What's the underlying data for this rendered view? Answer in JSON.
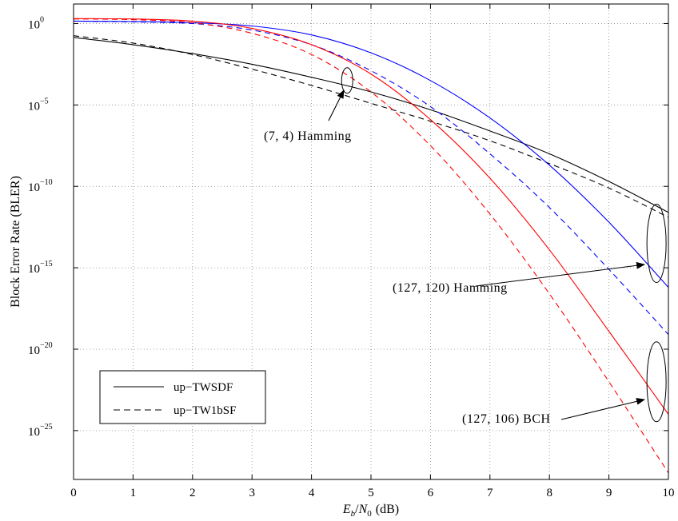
{
  "chart_data": {
    "type": "line",
    "xlabel": "E_b/N_0 (dB)",
    "xlabel_parts": {
      "e": "E",
      "b": "b",
      "slash": "/",
      "n": "N",
      "zero": "0",
      "unit": "(dB)"
    },
    "ylabel": "Block Error Rate (BLER)",
    "x_scale": "linear",
    "y_scale": "log",
    "xlim": [
      0,
      10
    ],
    "ylim_exponent": [
      -28,
      1.2
    ],
    "grid": true,
    "x_ticks": [
      "0",
      "1",
      "2",
      "3",
      "4",
      "5",
      "6",
      "7",
      "8",
      "9",
      "10"
    ],
    "y_ticks": [
      {
        "base": "10",
        "exp": "0",
        "value_exponent": 0
      },
      {
        "base": "10",
        "exp": "−5",
        "value_exponent": -5
      },
      {
        "base": "10",
        "exp": "−10",
        "value_exponent": -10
      },
      {
        "base": "10",
        "exp": "−15",
        "value_exponent": -15
      },
      {
        "base": "10",
        "exp": "−20",
        "value_exponent": -20
      },
      {
        "base": "10",
        "exp": "−25",
        "value_exponent": -25
      }
    ],
    "legend": {
      "position": "bottom-left",
      "entries": [
        {
          "label": "up−TWSDF",
          "style": "solid"
        },
        {
          "label": "up−TW1bSF",
          "style": "dashed"
        }
      ]
    },
    "y_value_note": "y values are base-10 exponents of BLER",
    "series": [
      {
        "group": "(7, 4) Hamming",
        "style": "solid",
        "color": "#000000",
        "x": [
          0,
          1,
          2,
          3,
          4,
          5,
          6,
          7,
          8,
          9,
          10
        ],
        "y": [
          -0.85,
          -1.3,
          -1.85,
          -2.5,
          -3.3,
          -4.2,
          -5.3,
          -6.6,
          -8.0,
          -9.7,
          -11.6
        ]
      },
      {
        "group": "(7, 4) Hamming",
        "style": "dashed",
        "color": "#000000",
        "x": [
          0,
          1,
          2,
          3,
          4,
          5,
          6,
          7,
          8,
          9,
          10
        ],
        "y": [
          -0.75,
          -1.2,
          -1.9,
          -2.8,
          -3.8,
          -4.9,
          -6.0,
          -7.2,
          -8.6,
          -10.1,
          -11.9
        ]
      },
      {
        "group": "(127, 120) Hamming",
        "style": "solid",
        "color": "#0000ff",
        "x": [
          0,
          1,
          2,
          3,
          4,
          5,
          6,
          7,
          8,
          9,
          10
        ],
        "y": [
          0.15,
          0.12,
          0.05,
          -0.15,
          -0.7,
          -1.8,
          -3.5,
          -5.8,
          -8.7,
          -12.2,
          -16.2
        ]
      },
      {
        "group": "(127, 120) Hamming",
        "style": "dashed",
        "color": "#0000ff",
        "x": [
          0,
          1,
          2,
          3,
          4,
          5,
          6,
          7,
          8,
          9,
          10
        ],
        "y": [
          0.15,
          0.1,
          0.0,
          -0.4,
          -1.3,
          -2.9,
          -5.1,
          -8.0,
          -11.3,
          -15.1,
          -19.1
        ]
      },
      {
        "group": "(127, 106) BCH",
        "style": "solid",
        "color": "#ff0000",
        "x": [
          0,
          1,
          2,
          3,
          4,
          5,
          6,
          7,
          8,
          9,
          10
        ],
        "y": [
          0.3,
          0.28,
          0.15,
          -0.3,
          -1.3,
          -3.1,
          -5.9,
          -9.5,
          -13.9,
          -18.9,
          -24.0
        ]
      },
      {
        "group": "(127, 106) BCH",
        "style": "dashed",
        "color": "#ff0000",
        "x": [
          0,
          1,
          2,
          3,
          4,
          5,
          6,
          7,
          8,
          9,
          10
        ],
        "y": [
          0.28,
          0.24,
          0.05,
          -0.6,
          -1.9,
          -4.2,
          -7.5,
          -11.7,
          -16.6,
          -22.0,
          -27.6
        ]
      }
    ],
    "annotations": [
      {
        "label": "(7, 4) Hamming",
        "ellipse_at": {
          "x": 4.6,
          "y": -3.5
        }
      },
      {
        "label": "(127, 120) Hamming",
        "ellipse_at": {
          "x": 9.8,
          "y": -13.5
        }
      },
      {
        "label": "(127, 106) BCH",
        "ellipse_at": {
          "x": 9.8,
          "y": -22.0
        }
      }
    ]
  }
}
